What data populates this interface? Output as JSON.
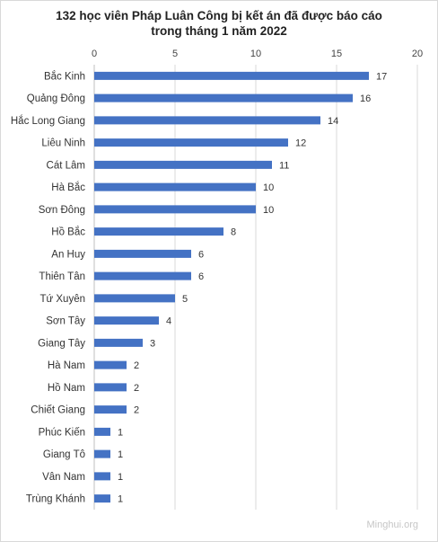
{
  "watermark": "Minghui.org",
  "colors": {
    "bar": "#4472c4",
    "grid": "#d9d9d9",
    "axis": "#bfbfbf"
  },
  "chart_data": {
    "type": "bar",
    "orientation": "horizontal",
    "title_lines": [
      "132 học viên Pháp Luân Công bị kết án đã được  báo cáo",
      "trong tháng 1 năm 2022"
    ],
    "xlabel": "",
    "ylabel": "",
    "xlim": [
      0,
      20
    ],
    "xticks": [
      0,
      5,
      10,
      15,
      20
    ],
    "x_axis_position": "top",
    "grid": true,
    "legend": "none",
    "categories": [
      "Bắc Kinh",
      "Quảng Đông",
      "Hắc Long Giang",
      "Liêu Ninh",
      "Cát Lâm",
      "Hà Bắc",
      "Sơn Đông",
      "Hồ Bắc",
      "An Huy",
      "Thiên Tân",
      "Tứ Xuyên",
      "Sơn Tây",
      "Giang Tây",
      "Hà Nam",
      "Hồ Nam",
      "Chiết Giang",
      "Phúc Kiến",
      "Giang Tô",
      "Vân Nam",
      "Trùng Khánh"
    ],
    "values": [
      17,
      16,
      14,
      12,
      11,
      10,
      10,
      8,
      6,
      6,
      5,
      4,
      3,
      2,
      2,
      2,
      1,
      1,
      1,
      1
    ]
  }
}
